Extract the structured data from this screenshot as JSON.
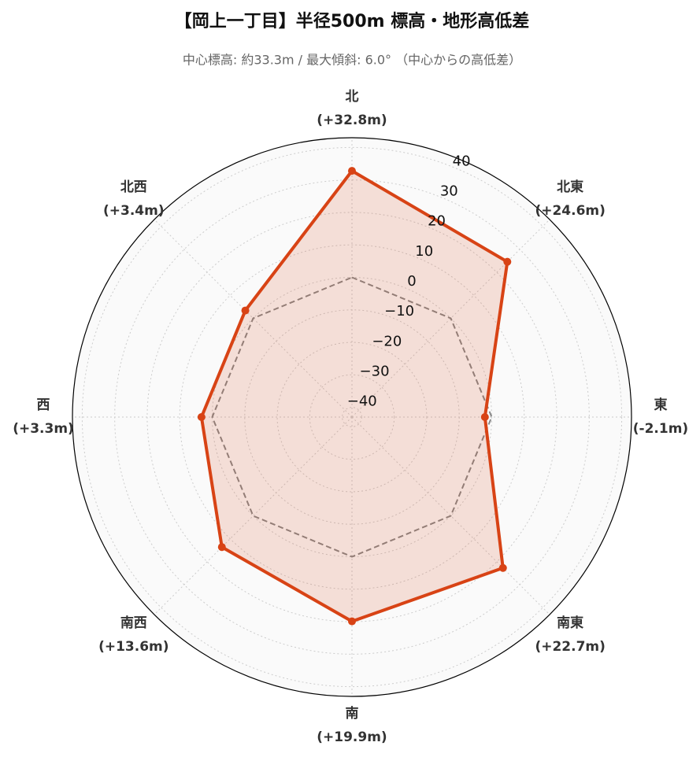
{
  "chart_data": {
    "type": "radar",
    "title": "【岡上一丁目】半径500m 標高・地形高低差",
    "subtitle": "中心標高: 約33.3m / 最大傾斜: 6.0° （中心からの高低差）",
    "categories": [
      "北",
      "北東",
      "東",
      "南東",
      "南",
      "南西",
      "西",
      "北西"
    ],
    "values": [
      32.8,
      24.6,
      -2.1,
      22.7,
      19.9,
      13.6,
      3.3,
      3.4
    ],
    "value_labels": [
      "(+32.8m)",
      "(+24.6m)",
      "(-2.1m)",
      "(+22.7m)",
      "(+19.9m)",
      "(+13.6m)",
      "(+3.3m)",
      "(+3.4m)"
    ],
    "color": "#d84315",
    "reference_value": 0,
    "ylim": [
      -43,
      43
    ],
    "yticks": [
      {
        "value": -40,
        "label": "−40"
      },
      {
        "value": -30,
        "label": "−30"
      },
      {
        "value": -20,
        "label": "−20"
      },
      {
        "value": -10,
        "label": "−10"
      },
      0,
      10,
      20,
      30,
      40
    ],
    "grid": true
  }
}
